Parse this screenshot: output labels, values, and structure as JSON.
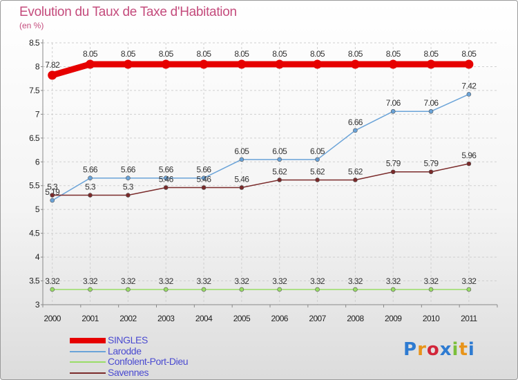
{
  "title": "Evolution du Taux de Taxe d'Habitation",
  "subtitle": "(en %)",
  "logo": {
    "text": "Proxiti",
    "colors": [
      "#2e7bd1",
      "#e8941a",
      "#d2263a",
      "#2e7bd1",
      "#7bbf3a",
      "#e8941a",
      "#2e7bd1"
    ]
  },
  "chart_data": {
    "type": "line",
    "title": "Evolution du Taux de Taxe d'Habitation",
    "ylabel": "(en %)",
    "x": [
      "2000",
      "2001",
      "2002",
      "2003",
      "2004",
      "2005",
      "2006",
      "2007",
      "2008",
      "2009",
      "2010",
      "2011"
    ],
    "ylim": [
      3,
      8.5
    ],
    "yticks": [
      "3",
      "3.5",
      "4",
      "4.5",
      "5",
      "5.5",
      "6",
      "6.5",
      "7",
      "7.5",
      "8",
      "8.5"
    ],
    "grid": true,
    "legend": "bottom-left",
    "series": [
      {
        "name": "SINGLES",
        "color": "#e60000",
        "width": 9,
        "values": [
          7.82,
          8.05,
          8.05,
          8.05,
          8.05,
          8.05,
          8.05,
          8.05,
          8.05,
          8.05,
          8.05,
          8.05
        ],
        "labels": [
          "7.82",
          "8.05",
          "8.05",
          "8.05",
          "8.05",
          "8.05",
          "8.05",
          "8.05",
          "8.05",
          "8.05",
          "8.05",
          "8.05"
        ]
      },
      {
        "name": "Larodde",
        "color": "#6aa3d8",
        "width": 1.5,
        "values": [
          5.19,
          5.66,
          5.66,
          5.66,
          5.66,
          6.05,
          6.05,
          6.05,
          6.66,
          7.06,
          7.06,
          7.42
        ],
        "labels": [
          "5.19",
          "5.66",
          "5.66",
          "5.66",
          "5.66",
          "6.05",
          "6.05",
          "6.05",
          "6.66",
          "7.06",
          "7.06",
          "7.42"
        ]
      },
      {
        "name": "Confolent-Port-Dieu",
        "color": "#99dd66",
        "width": 1.5,
        "values": [
          3.32,
          3.32,
          3.32,
          3.32,
          3.32,
          3.32,
          3.32,
          3.32,
          3.32,
          3.32,
          3.32,
          3.32
        ],
        "labels": [
          "3.32",
          "3.32",
          "3.32",
          "3.32",
          "3.32",
          "3.32",
          "3.32",
          "3.32",
          "3.32",
          "3.32",
          "3.32",
          "3.32"
        ]
      },
      {
        "name": "Savennes",
        "color": "#7a2a2a",
        "width": 1.5,
        "values": [
          5.3,
          5.3,
          5.3,
          5.46,
          5.46,
          5.46,
          5.62,
          5.62,
          5.62,
          5.79,
          5.79,
          5.96
        ],
        "labels": [
          "5.3",
          "5.3",
          "5.3",
          "5.46",
          "5.46",
          "5.46",
          "5.62",
          "5.62",
          "5.62",
          "5.79",
          "5.79",
          "5.96"
        ]
      }
    ]
  }
}
